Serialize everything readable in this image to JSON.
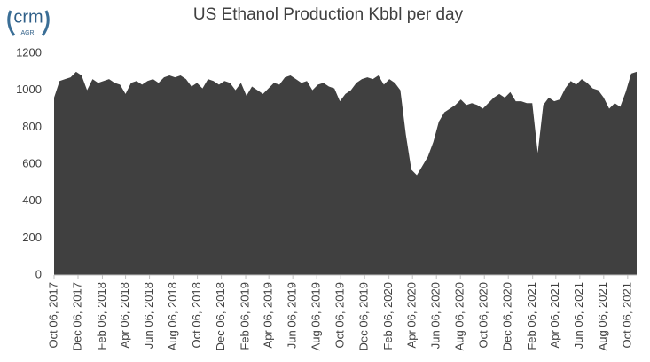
{
  "logo": {
    "name": "crm",
    "tagline": "AGRI"
  },
  "chart_data": {
    "type": "area",
    "title": "US Ethanol Production Kbbl per day",
    "color": "#404040",
    "x": [
      "2017-10-06",
      "2017-10-20",
      "2017-11-03",
      "2017-11-17",
      "2017-12-01",
      "2017-12-15",
      "2017-12-29",
      "2018-01-12",
      "2018-01-26",
      "2018-02-09",
      "2018-02-23",
      "2018-03-09",
      "2018-03-23",
      "2018-04-06",
      "2018-04-20",
      "2018-05-04",
      "2018-05-18",
      "2018-06-01",
      "2018-06-15",
      "2018-06-29",
      "2018-07-13",
      "2018-07-27",
      "2018-08-10",
      "2018-08-24",
      "2018-09-07",
      "2018-09-21",
      "2018-10-05",
      "2018-10-19",
      "2018-11-02",
      "2018-11-16",
      "2018-11-30",
      "2018-12-14",
      "2018-12-28",
      "2019-01-11",
      "2019-01-25",
      "2019-02-08",
      "2019-02-22",
      "2019-03-08",
      "2019-03-22",
      "2019-04-05",
      "2019-04-19",
      "2019-05-03",
      "2019-05-17",
      "2019-05-31",
      "2019-06-14",
      "2019-06-28",
      "2019-07-12",
      "2019-07-26",
      "2019-08-09",
      "2019-08-23",
      "2019-09-06",
      "2019-09-20",
      "2019-10-04",
      "2019-10-18",
      "2019-11-01",
      "2019-11-15",
      "2019-11-29",
      "2019-12-13",
      "2019-12-27",
      "2020-01-10",
      "2020-01-24",
      "2020-02-07",
      "2020-02-21",
      "2020-03-06",
      "2020-03-20",
      "2020-04-03",
      "2020-04-17",
      "2020-05-01",
      "2020-05-15",
      "2020-05-29",
      "2020-06-12",
      "2020-06-26",
      "2020-07-10",
      "2020-07-24",
      "2020-08-07",
      "2020-08-21",
      "2020-09-04",
      "2020-09-18",
      "2020-10-02",
      "2020-10-16",
      "2020-10-30",
      "2020-11-13",
      "2020-11-27",
      "2020-12-11",
      "2020-12-25",
      "2021-01-08",
      "2021-01-22",
      "2021-02-05",
      "2021-02-19",
      "2021-03-05",
      "2021-03-19",
      "2021-04-02",
      "2021-04-16",
      "2021-04-30",
      "2021-05-14",
      "2021-05-28",
      "2021-06-11",
      "2021-06-25",
      "2021-07-09",
      "2021-07-23",
      "2021-08-06",
      "2021-08-20",
      "2021-09-03",
      "2021-09-17",
      "2021-10-01",
      "2021-10-15",
      "2021-10-29"
    ],
    "values": [
      960,
      1050,
      1060,
      1070,
      1100,
      1080,
      1000,
      1060,
      1040,
      1050,
      1060,
      1040,
      1030,
      980,
      1040,
      1050,
      1030,
      1050,
      1060,
      1040,
      1070,
      1080,
      1070,
      1080,
      1060,
      1020,
      1040,
      1010,
      1060,
      1050,
      1030,
      1050,
      1040,
      1000,
      1040,
      970,
      1020,
      1000,
      980,
      1010,
      1040,
      1030,
      1070,
      1080,
      1060,
      1040,
      1050,
      1000,
      1030,
      1040,
      1020,
      1010,
      940,
      980,
      1000,
      1040,
      1060,
      1070,
      1060,
      1080,
      1030,
      1060,
      1040,
      1000,
      760,
      570,
      540,
      590,
      640,
      720,
      830,
      880,
      900,
      920,
      950,
      920,
      930,
      920,
      900,
      930,
      960,
      980,
      960,
      990,
      940,
      940,
      930,
      930,
      660,
      920,
      960,
      940,
      950,
      1010,
      1050,
      1030,
      1060,
      1040,
      1010,
      1000,
      960,
      900,
      930,
      910,
      990,
      1090,
      1100
    ],
    "xlim": [
      "2017-10-06",
      "2021-10-29"
    ],
    "xticks": [
      {
        "value": "2017-10-06",
        "label": "Oct 06, 2017"
      },
      {
        "value": "2017-12-06",
        "label": "Dec 06, 2017"
      },
      {
        "value": "2018-02-06",
        "label": "Feb 06, 2018"
      },
      {
        "value": "2018-04-06",
        "label": "Apr 06, 2018"
      },
      {
        "value": "2018-06-06",
        "label": "Jun 06, 2018"
      },
      {
        "value": "2018-08-06",
        "label": "Aug 06, 2018"
      },
      {
        "value": "2018-10-06",
        "label": "Oct 06, 2018"
      },
      {
        "value": "2018-12-06",
        "label": "Dec 06, 2018"
      },
      {
        "value": "2019-02-06",
        "label": "Feb 06, 2019"
      },
      {
        "value": "2019-04-06",
        "label": "Apr 06, 2019"
      },
      {
        "value": "2019-06-06",
        "label": "Jun 06, 2019"
      },
      {
        "value": "2019-08-06",
        "label": "Aug 06, 2019"
      },
      {
        "value": "2019-10-06",
        "label": "Oct 06, 2019"
      },
      {
        "value": "2019-12-06",
        "label": "Dec 06, 2019"
      },
      {
        "value": "2020-02-06",
        "label": "Feb 06, 2020"
      },
      {
        "value": "2020-04-06",
        "label": "Apr 06, 2020"
      },
      {
        "value": "2020-06-06",
        "label": "Jun 06, 2020"
      },
      {
        "value": "2020-08-06",
        "label": "Aug 06, 2020"
      },
      {
        "value": "2020-10-06",
        "label": "Oct 06, 2020"
      },
      {
        "value": "2020-12-06",
        "label": "Dec 06, 2020"
      },
      {
        "value": "2021-02-06",
        "label": "Feb 06, 2021"
      },
      {
        "value": "2021-04-06",
        "label": "Apr 06, 2021"
      },
      {
        "value": "2021-06-06",
        "label": "Jun 06, 2021"
      },
      {
        "value": "2021-08-06",
        "label": "Aug 06, 2021"
      },
      {
        "value": "2021-10-06",
        "label": "Oct 06, 2021"
      }
    ],
    "ylim": [
      0,
      1200
    ],
    "yticks": [
      0,
      200,
      400,
      600,
      800,
      1000,
      1200
    ],
    "grid": false
  }
}
